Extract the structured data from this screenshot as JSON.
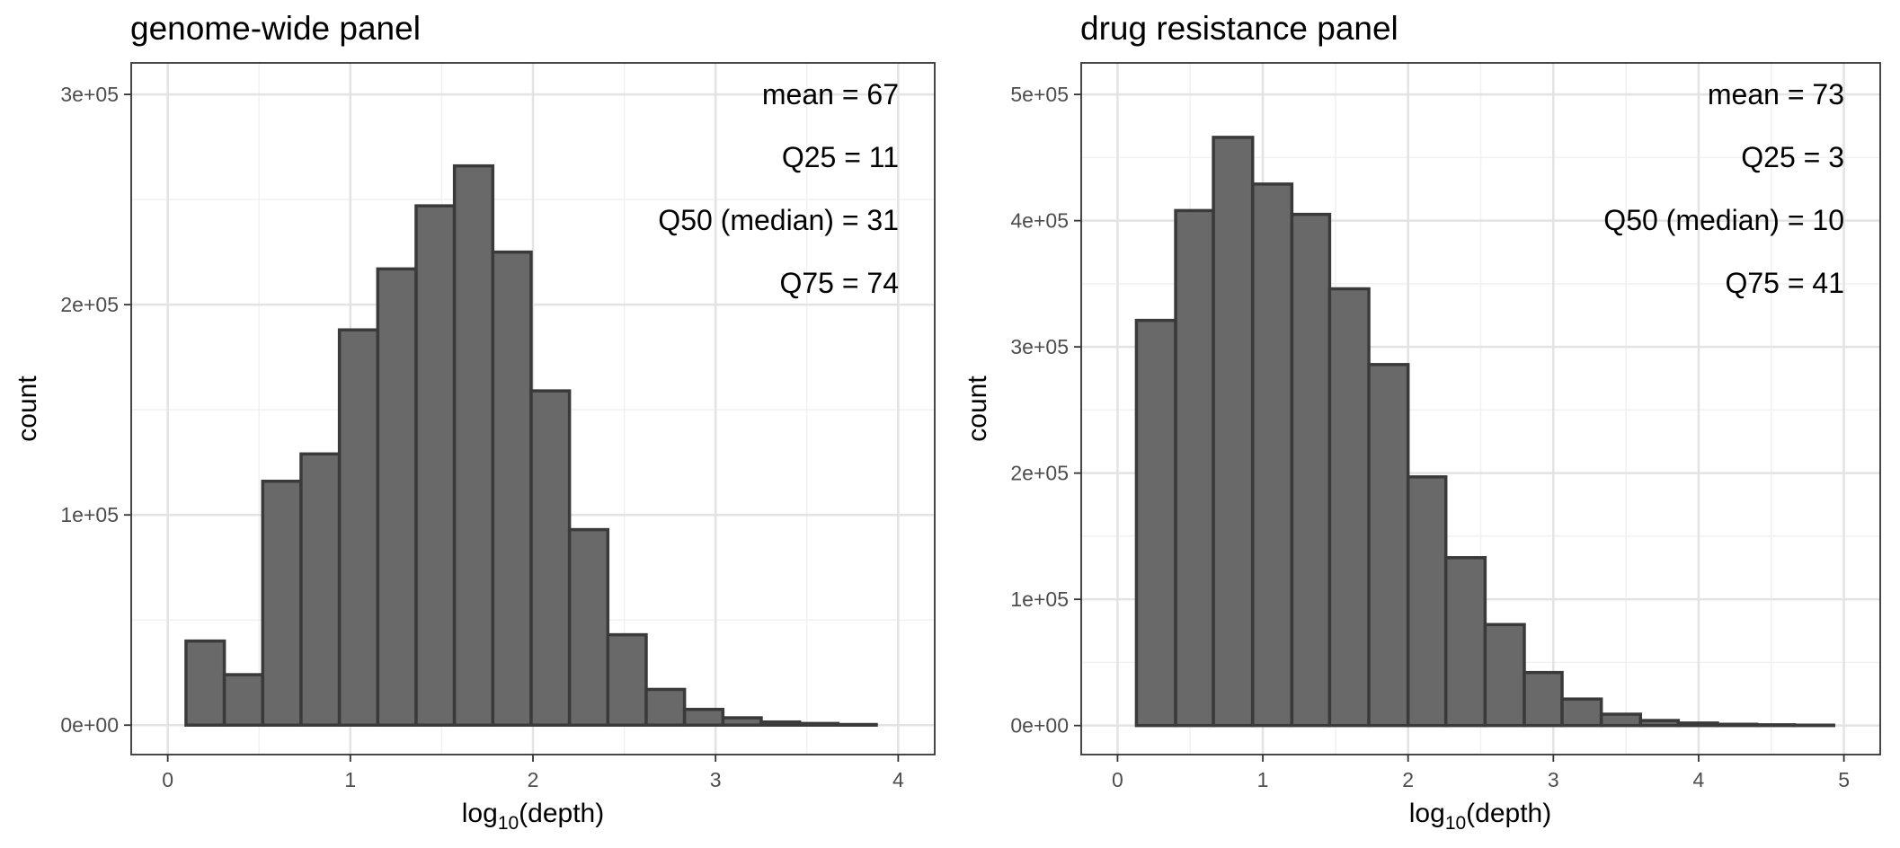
{
  "chart_data": [
    {
      "type": "bar",
      "title": "genome-wide panel",
      "xlabel_base": "log",
      "xlabel_sub": "10",
      "xlabel_suffix": "(depth)",
      "ylabel": "count",
      "xlim": [
        -0.2,
        4.2
      ],
      "ylim": [
        -14000,
        315000
      ],
      "x_ticks": [
        0,
        1,
        2,
        3,
        4
      ],
      "x_tick_labels": [
        "0",
        "1",
        "2",
        "3",
        "4"
      ],
      "y_ticks": [
        0,
        100000,
        200000,
        300000
      ],
      "y_tick_labels": [
        "0e+00",
        "1e+05",
        "2e+05",
        "3e+05"
      ],
      "grid": true,
      "annotations": [
        "mean = 67",
        "Q25 = 11",
        "Q50 (median) = 31",
        "Q75 = 74"
      ],
      "bins": [
        [
          0.1,
          0.31,
          40000
        ],
        [
          0.31,
          0.52,
          24000
        ],
        [
          0.52,
          0.73,
          116000
        ],
        [
          0.73,
          0.94,
          129000
        ],
        [
          0.94,
          1.15,
          188000
        ],
        [
          1.15,
          1.36,
          217000
        ],
        [
          1.36,
          1.57,
          247000
        ],
        [
          1.57,
          1.78,
          266000
        ],
        [
          1.78,
          1.99,
          225000
        ],
        [
          1.99,
          2.2,
          159000
        ],
        [
          2.2,
          2.41,
          93000
        ],
        [
          2.41,
          2.62,
          43000
        ],
        [
          2.62,
          2.83,
          17000
        ],
        [
          2.83,
          3.04,
          7500
        ],
        [
          3.04,
          3.25,
          3500
        ],
        [
          3.25,
          3.46,
          1500
        ],
        [
          3.46,
          3.67,
          800
        ],
        [
          3.67,
          3.88,
          300
        ]
      ]
    },
    {
      "type": "bar",
      "title": "drug resistance panel",
      "xlabel_base": "log",
      "xlabel_sub": "10",
      "xlabel_suffix": "(depth)",
      "ylabel": "count",
      "xlim": [
        -0.25,
        5.25
      ],
      "ylim": [
        -23000,
        525000
      ],
      "x_ticks": [
        0,
        1,
        2,
        3,
        4,
        5
      ],
      "x_tick_labels": [
        "0",
        "1",
        "2",
        "3",
        "4",
        "5"
      ],
      "y_ticks": [
        0,
        100000,
        200000,
        300000,
        400000,
        500000
      ],
      "y_tick_labels": [
        "0e+00",
        "1e+05",
        "2e+05",
        "3e+05",
        "4e+05",
        "5e+05"
      ],
      "grid": true,
      "annotations": [
        "mean = 73",
        "Q25 = 3",
        "Q50 (median) = 10",
        "Q75 = 41"
      ],
      "bins": [
        [
          0.13,
          0.4,
          321000
        ],
        [
          0.4,
          0.66,
          408000
        ],
        [
          0.66,
          0.93,
          466000
        ],
        [
          0.93,
          1.2,
          429000
        ],
        [
          1.2,
          1.46,
          405000
        ],
        [
          1.46,
          1.73,
          346000
        ],
        [
          1.73,
          2.0,
          286000
        ],
        [
          2.0,
          2.26,
          197000
        ],
        [
          2.26,
          2.53,
          133000
        ],
        [
          2.53,
          2.8,
          80000
        ],
        [
          2.8,
          3.06,
          42000
        ],
        [
          3.06,
          3.33,
          21000
        ],
        [
          3.33,
          3.6,
          9000
        ],
        [
          3.6,
          3.86,
          4000
        ],
        [
          3.86,
          4.13,
          2000
        ],
        [
          4.13,
          4.4,
          1000
        ],
        [
          4.4,
          4.66,
          600
        ],
        [
          4.66,
          4.93,
          300
        ]
      ]
    }
  ],
  "colors": {
    "bar_fill": "#696969",
    "bar_stroke": "#3a3a3a",
    "grid_major": "#e3e3e3",
    "grid_minor": "#f1f1f1",
    "panel_border": "#333333",
    "tick_label": "#4d4d4d"
  }
}
